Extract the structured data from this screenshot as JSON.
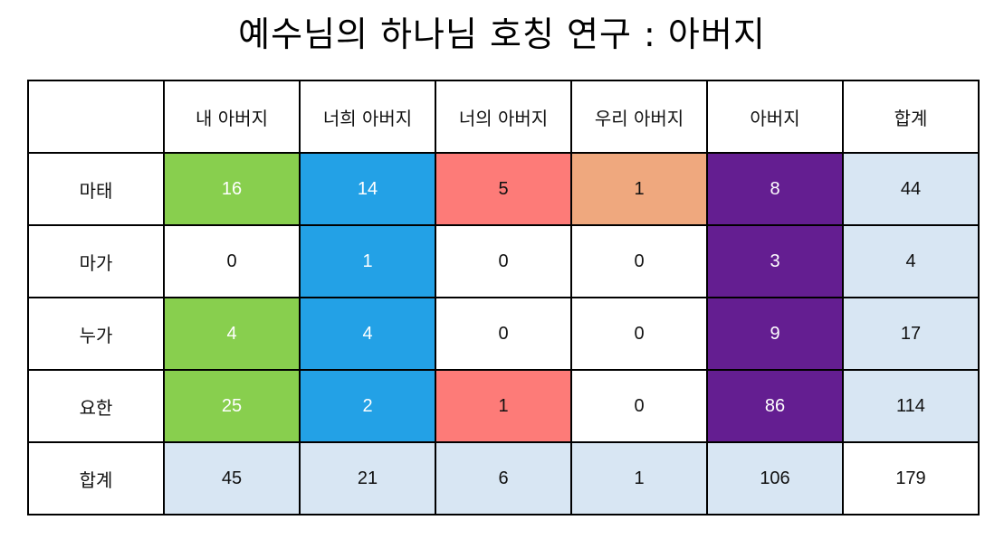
{
  "title": "예수님의 하나님 호칭 연구 : 아버지",
  "colors": {
    "green": "#88cf4e",
    "blue": "#23a1e6",
    "red": "#fd7b78",
    "orange": "#efa87e",
    "purple": "#641e91",
    "light_blue": "#d8e6f3",
    "white": "#ffffff"
  },
  "table": {
    "corner": "",
    "columns": [
      "내 아버지",
      "너희 아버지",
      "너의 아버지",
      "우리 아버지",
      "아버지",
      "합계"
    ],
    "rows": [
      {
        "label": "마태",
        "cells": [
          {
            "value": "16",
            "bg": "#88cf4e",
            "fg": "#ffffff"
          },
          {
            "value": "14",
            "bg": "#23a1e6",
            "fg": "#ffffff"
          },
          {
            "value": "5",
            "bg": "#fd7b78",
            "fg": "#111111"
          },
          {
            "value": "1",
            "bg": "#efa87e",
            "fg": "#111111"
          },
          {
            "value": "8",
            "bg": "#641e91",
            "fg": "#ffffff"
          },
          {
            "value": "44",
            "bg": "#d8e6f3",
            "fg": "#111111"
          }
        ]
      },
      {
        "label": "마가",
        "cells": [
          {
            "value": "0",
            "bg": "#ffffff",
            "fg": "#111111"
          },
          {
            "value": "1",
            "bg": "#23a1e6",
            "fg": "#ffffff"
          },
          {
            "value": "0",
            "bg": "#ffffff",
            "fg": "#111111"
          },
          {
            "value": "0",
            "bg": "#ffffff",
            "fg": "#111111"
          },
          {
            "value": "3",
            "bg": "#641e91",
            "fg": "#ffffff"
          },
          {
            "value": "4",
            "bg": "#d8e6f3",
            "fg": "#111111"
          }
        ]
      },
      {
        "label": "누가",
        "cells": [
          {
            "value": "4",
            "bg": "#88cf4e",
            "fg": "#ffffff"
          },
          {
            "value": "4",
            "bg": "#23a1e6",
            "fg": "#ffffff"
          },
          {
            "value": "0",
            "bg": "#ffffff",
            "fg": "#111111"
          },
          {
            "value": "0",
            "bg": "#ffffff",
            "fg": "#111111"
          },
          {
            "value": "9",
            "bg": "#641e91",
            "fg": "#ffffff"
          },
          {
            "value": "17",
            "bg": "#d8e6f3",
            "fg": "#111111"
          }
        ]
      },
      {
        "label": "요한",
        "cells": [
          {
            "value": "25",
            "bg": "#88cf4e",
            "fg": "#ffffff"
          },
          {
            "value": "2",
            "bg": "#23a1e6",
            "fg": "#ffffff"
          },
          {
            "value": "1",
            "bg": "#fd7b78",
            "fg": "#111111"
          },
          {
            "value": "0",
            "bg": "#ffffff",
            "fg": "#111111"
          },
          {
            "value": "86",
            "bg": "#641e91",
            "fg": "#ffffff"
          },
          {
            "value": "114",
            "bg": "#d8e6f3",
            "fg": "#111111"
          }
        ]
      },
      {
        "label": "합계",
        "cells": [
          {
            "value": "45",
            "bg": "#d8e6f3",
            "fg": "#111111"
          },
          {
            "value": "21",
            "bg": "#d8e6f3",
            "fg": "#111111"
          },
          {
            "value": "6",
            "bg": "#d8e6f3",
            "fg": "#111111"
          },
          {
            "value": "1",
            "bg": "#d8e6f3",
            "fg": "#111111"
          },
          {
            "value": "106",
            "bg": "#d8e6f3",
            "fg": "#111111"
          },
          {
            "value": "179",
            "bg": "#ffffff",
            "fg": "#111111"
          }
        ]
      }
    ]
  }
}
